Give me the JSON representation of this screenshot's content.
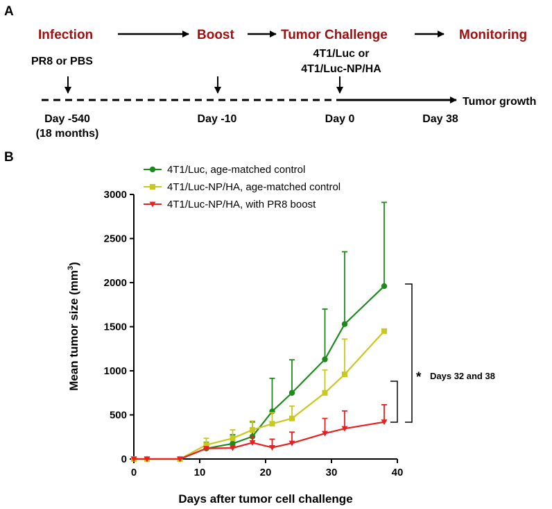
{
  "panel_a": {
    "panel_label": "A",
    "stages": [
      "Infection",
      "Boost",
      "Tumor Challenge",
      "Monitoring"
    ],
    "infection_note": "PR8 or PBS",
    "challenge_note_1": "4T1/Luc or",
    "challenge_note_2": "4T1/Luc-NP/HA",
    "day_labels": [
      "Day -540",
      "Day -10",
      "Day 0",
      "Day 38"
    ],
    "day_sub": "(18 months)",
    "tumor_growth": "Tumor growth"
  },
  "panel_b": {
    "panel_label": "B",
    "significance": "Days 32 and 38",
    "significance_mark": "*"
  },
  "chart_data": {
    "type": "line",
    "title": "",
    "xlabel": "Days after tumor cell challenge",
    "ylabel": "Mean tumor size (mm",
    "ylabel_sup": "3",
    "ylabel_end": ")",
    "xlim": [
      0,
      40
    ],
    "ylim": [
      0,
      3000
    ],
    "xticks": [
      0,
      10,
      20,
      30,
      40
    ],
    "yticks": [
      0,
      500,
      1000,
      1500,
      2000,
      2500,
      3000
    ],
    "legend_position": "top-left",
    "series": [
      {
        "name": "4T1/Luc, age-matched control",
        "color": "#1e8a1e",
        "marker": "circle",
        "x": [
          0,
          2,
          7,
          11,
          15,
          18,
          21,
          24,
          29,
          32,
          38
        ],
        "y": [
          0,
          0,
          0,
          120,
          175,
          255,
          540,
          750,
          1130,
          1530,
          1960
        ],
        "err": [
          0,
          0,
          0,
          70,
          100,
          165,
          375,
          375,
          570,
          820,
          950
        ]
      },
      {
        "name": "4T1/Luc-NP/HA, age-matched control",
        "color": "#c8c81e",
        "marker": "square",
        "x": [
          0,
          2,
          7,
          11,
          15,
          18,
          21,
          24,
          29,
          32,
          38
        ],
        "y": [
          0,
          0,
          0,
          160,
          235,
          330,
          400,
          460,
          750,
          960,
          1450
        ],
        "err": [
          0,
          0,
          0,
          75,
          95,
          100,
          125,
          140,
          260,
          400,
          0
        ]
      },
      {
        "name": "4T1/Luc-NP/HA, with PR8 boost",
        "color": "#e82020",
        "marker": "triangle-down",
        "x": [
          0,
          2,
          7,
          11,
          15,
          18,
          21,
          24,
          29,
          32,
          38
        ],
        "y": [
          0,
          0,
          0,
          120,
          125,
          185,
          130,
          180,
          290,
          345,
          420
        ],
        "err": [
          0,
          0,
          0,
          0,
          0,
          65,
          95,
          125,
          170,
          200,
          195
        ]
      }
    ]
  }
}
